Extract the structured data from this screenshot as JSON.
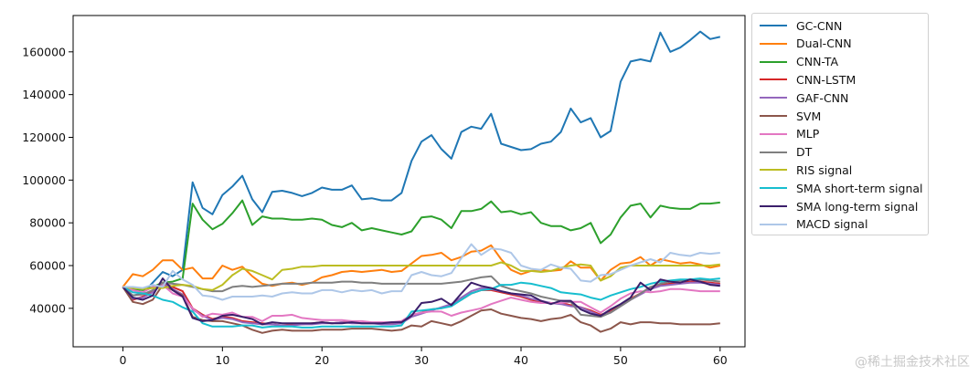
{
  "chart_data": {
    "type": "line",
    "title": "",
    "xlabel": "",
    "ylabel": "",
    "xlim": [
      -5,
      62.5
    ],
    "ylim": [
      22000,
      177000
    ],
    "xticks": [
      0,
      10,
      20,
      30,
      40,
      50,
      60
    ],
    "yticks": [
      40000,
      60000,
      80000,
      100000,
      120000,
      140000,
      160000
    ],
    "grid": false,
    "legend_position": "outside-right",
    "x": [
      0,
      1,
      2,
      3,
      4,
      5,
      6,
      7,
      8,
      9,
      10,
      11,
      12,
      13,
      14,
      15,
      16,
      17,
      18,
      19,
      20,
      21,
      22,
      23,
      24,
      25,
      26,
      27,
      28,
      29,
      30,
      31,
      32,
      33,
      34,
      35,
      36,
      37,
      38,
      39,
      40,
      41,
      42,
      43,
      44,
      45,
      46,
      47,
      48,
      49,
      50,
      51,
      52,
      53,
      54,
      55,
      56,
      57,
      58,
      59,
      60
    ],
    "series": [
      {
        "name": "GC-CNN",
        "color": "#1f77b4",
        "values": [
          50000,
          46000,
          47000,
          52000,
          57000,
          55000,
          58000,
          99000,
          87000,
          84000,
          93000,
          97000,
          102000,
          91000,
          85000,
          94500,
          95000,
          94000,
          92500,
          94000,
          96500,
          95500,
          95500,
          97500,
          91000,
          91500,
          90500,
          90500,
          94000,
          109000,
          118000,
          121000,
          114500,
          110000,
          122500,
          125000,
          124000,
          131000,
          117000,
          115500,
          114000,
          114500,
          117000,
          118000,
          122500,
          133500,
          127000,
          129000,
          120000,
          123000,
          146000,
          155500,
          156500,
          155500,
          169000,
          160000,
          162000,
          165500,
          169500,
          166000,
          167000
        ]
      },
      {
        "name": "Dual-CNN",
        "color": "#ff7f0e",
        "values": [
          50000,
          56000,
          55000,
          58000,
          62500,
          62500,
          58000,
          59000,
          54000,
          54000,
          60000,
          58000,
          59500,
          55000,
          51500,
          50500,
          51500,
          52000,
          51000,
          52000,
          54500,
          55500,
          57000,
          57500,
          57000,
          57500,
          58000,
          57000,
          57500,
          61000,
          64500,
          65000,
          66000,
          62500,
          64000,
          66500,
          67000,
          69500,
          63000,
          58000,
          56000,
          57500,
          58000,
          57500,
          58000,
          62000,
          59000,
          59000,
          53000,
          58000,
          61000,
          61500,
          64000,
          60000,
          63000,
          62000,
          61000,
          61500,
          60500,
          59000,
          60000
        ]
      },
      {
        "name": "CNN-TA",
        "color": "#2ca02c",
        "values": [
          50000,
          49000,
          48500,
          50000,
          52000,
          52500,
          54000,
          89000,
          81500,
          77000,
          79500,
          84500,
          90500,
          79000,
          83000,
          82000,
          82000,
          81500,
          81500,
          82000,
          81500,
          79000,
          78000,
          80000,
          76500,
          77500,
          76500,
          75500,
          74500,
          76000,
          82500,
          83000,
          81500,
          77500,
          85500,
          85500,
          86500,
          90000,
          85000,
          85500,
          84000,
          85000,
          80000,
          78500,
          78500,
          76500,
          77500,
          80000,
          70500,
          74500,
          82500,
          88000,
          89000,
          82500,
          88000,
          87000,
          86500,
          86500,
          89000,
          89000,
          89500
        ]
      },
      {
        "name": "CNN-LSTM",
        "color": "#d62728",
        "values": [
          50000,
          44000,
          45500,
          48000,
          52000,
          50000,
          48000,
          40000,
          37000,
          35000,
          36000,
          35500,
          34000,
          33500,
          33000,
          32500,
          32000,
          32500,
          32500,
          33000,
          33500,
          33000,
          33500,
          33500,
          33000,
          33000,
          33000,
          33000,
          33500,
          36500,
          38000,
          39500,
          40000,
          41500,
          44000,
          47000,
          48500,
          48500,
          47500,
          46500,
          45500,
          44000,
          43000,
          42500,
          42500,
          41500,
          40500,
          39000,
          37000,
          38500,
          41500,
          44500,
          47000,
          49500,
          51000,
          51500,
          52000,
          52500,
          52500,
          52000,
          51500
        ]
      },
      {
        "name": "GAF-CNN",
        "color": "#9467bd",
        "values": [
          50000,
          44500,
          45000,
          47500,
          51500,
          49000,
          46500,
          39500,
          36500,
          34500,
          35500,
          35000,
          33500,
          33000,
          32500,
          32500,
          32000,
          32000,
          32500,
          32500,
          33000,
          33000,
          33500,
          33000,
          33000,
          33000,
          32500,
          32500,
          33000,
          36000,
          37500,
          39000,
          40500,
          42000,
          45000,
          48000,
          49500,
          49000,
          48000,
          47000,
          46000,
          44500,
          43500,
          42500,
          42000,
          41000,
          40500,
          38500,
          36500,
          38000,
          41000,
          44000,
          46500,
          49000,
          50500,
          51000,
          51500,
          52000,
          52000,
          51500,
          51000
        ]
      },
      {
        "name": "SVM",
        "color": "#8c564b",
        "values": [
          50000,
          43000,
          42000,
          44000,
          51000,
          48500,
          46000,
          36000,
          34500,
          34000,
          34000,
          33000,
          32000,
          30000,
          28500,
          29500,
          30000,
          29500,
          29500,
          29500,
          30000,
          30000,
          30000,
          30500,
          30500,
          30500,
          30000,
          29500,
          30000,
          32000,
          31500,
          34000,
          33000,
          32000,
          34000,
          36500,
          39000,
          39500,
          37500,
          36500,
          35500,
          35000,
          34000,
          35000,
          35500,
          37000,
          33500,
          32000,
          29000,
          30500,
          33500,
          32500,
          33500,
          33500,
          33000,
          33000,
          32500,
          32500,
          32500,
          32500,
          33000
        ]
      },
      {
        "name": "MLP",
        "color": "#e377c2",
        "values": [
          50000,
          48500,
          47500,
          50000,
          51000,
          47000,
          45500,
          40000,
          36000,
          37500,
          37000,
          38000,
          36000,
          36000,
          34000,
          36500,
          36500,
          37000,
          35500,
          35000,
          34500,
          34500,
          34500,
          34000,
          34000,
          33500,
          33500,
          33500,
          34000,
          37000,
          38000,
          38500,
          38500,
          36500,
          38000,
          39000,
          40000,
          42000,
          43500,
          45000,
          44000,
          43000,
          42500,
          42500,
          42500,
          43000,
          43000,
          40500,
          38000,
          41000,
          44500,
          47000,
          48000,
          47500,
          48000,
          49000,
          49000,
          48500,
          48000,
          48000,
          48000
        ]
      },
      {
        "name": "DT",
        "color": "#7f7f7f",
        "values": [
          50000,
          46000,
          46500,
          48500,
          52000,
          51500,
          51000,
          50000,
          49000,
          48000,
          48000,
          50000,
          50500,
          50000,
          50500,
          51000,
          51500,
          51500,
          51500,
          52000,
          52000,
          52000,
          52500,
          52500,
          52000,
          52000,
          51500,
          51500,
          51500,
          51500,
          51500,
          51500,
          51500,
          52000,
          52500,
          53500,
          54500,
          55000,
          50500,
          49000,
          48000,
          47000,
          45500,
          44500,
          43500,
          43000,
          37000,
          36500,
          36000,
          38000,
          41000,
          44000,
          47000,
          50000,
          51500,
          52500,
          53000,
          53500,
          53500,
          53000,
          52500
        ]
      },
      {
        "name": "RIS signal",
        "color": "#bcbd22",
        "values": [
          50000,
          49500,
          49000,
          49500,
          49500,
          50500,
          51000,
          50500,
          49000,
          48500,
          51000,
          55500,
          58500,
          57500,
          55500,
          53500,
          58000,
          58500,
          59500,
          59500,
          60000,
          60000,
          60000,
          60000,
          60000,
          60000,
          60000,
          60000,
          60000,
          60000,
          60000,
          60000,
          60000,
          60000,
          60000,
          60000,
          60000,
          60000,
          61500,
          60000,
          57500,
          57500,
          57000,
          57500,
          59000,
          60000,
          60500,
          60000,
          53000,
          55000,
          59000,
          60000,
          60000,
          60000,
          60000,
          60000,
          60000,
          60000,
          60000,
          60000,
          60500
        ]
      },
      {
        "name": "SMA short-term signal",
        "color": "#17becf",
        "values": [
          50000,
          47500,
          47000,
          46000,
          44000,
          43000,
          40500,
          38500,
          33000,
          31500,
          31500,
          31500,
          32000,
          32000,
          31000,
          31500,
          31500,
          31500,
          31000,
          31000,
          31500,
          31500,
          31500,
          31500,
          31500,
          31500,
          31500,
          31500,
          32000,
          38500,
          39000,
          39500,
          40000,
          41000,
          44000,
          47000,
          48500,
          49000,
          51000,
          51000,
          52000,
          51500,
          50500,
          49500,
          47500,
          47000,
          46500,
          45000,
          44000,
          46000,
          47500,
          49000,
          50000,
          51500,
          52500,
          53000,
          53500,
          53500,
          54000,
          53500,
          54000
        ]
      },
      {
        "name": "SMA long-term signal",
        "color": "#3b1f6b",
        "values": [
          50000,
          45000,
          44000,
          46000,
          54000,
          48500,
          45500,
          35500,
          34000,
          34500,
          36500,
          37000,
          36000,
          35000,
          32500,
          33500,
          33000,
          33000,
          33000,
          33000,
          33500,
          33000,
          33000,
          33500,
          33000,
          33000,
          33000,
          33500,
          33500,
          36500,
          42500,
          43000,
          44500,
          41500,
          47000,
          52000,
          50500,
          49500,
          48000,
          47000,
          46500,
          46000,
          43500,
          42000,
          43500,
          43500,
          39500,
          37500,
          36500,
          39500,
          42000,
          45000,
          52000,
          48500,
          53500,
          52500,
          52000,
          53500,
          52500,
          51000,
          50500
        ]
      },
      {
        "name": "MACD signal",
        "color": "#aec7e8",
        "values": [
          50000,
          50000,
          49500,
          51000,
          50000,
          57500,
          53500,
          51000,
          46000,
          45500,
          44000,
          45500,
          45500,
          45500,
          46000,
          45500,
          47000,
          47500,
          47000,
          47000,
          48500,
          48500,
          47500,
          48500,
          48000,
          48500,
          47000,
          48000,
          48000,
          55500,
          57000,
          55500,
          55000,
          56500,
          63500,
          70000,
          65000,
          68000,
          67500,
          66000,
          60000,
          58500,
          58000,
          60500,
          59000,
          58500,
          53000,
          52500,
          55500,
          56000,
          58000,
          60000,
          61500,
          63000,
          61500,
          66000,
          65000,
          64500,
          66000,
          65500,
          66000
        ]
      }
    ]
  },
  "watermark": "@稀土掘金技术社区"
}
